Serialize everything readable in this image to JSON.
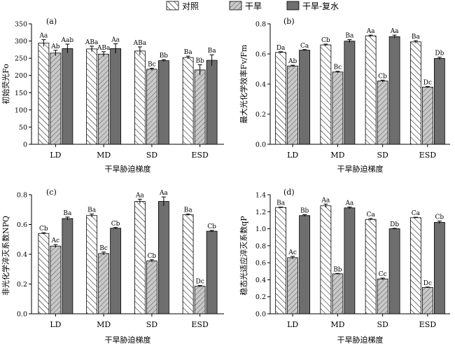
{
  "legend": [
    {
      "name": "对照",
      "fill": "hatch-fwd"
    },
    {
      "name": "干旱",
      "fill": "hatch-back"
    },
    {
      "name": "干旱-复水",
      "fill": "solid"
    }
  ],
  "colors": {
    "solid_bar": "#6e6e6e",
    "hatch_back_bg": "#c8c8c8",
    "axis": "#000000"
  },
  "chart_data": [
    {
      "type": "bar",
      "panel": "(a)",
      "ylabel": "初始荧光Fo",
      "xlabel": "干旱胁迫梯度",
      "categories": [
        "LD",
        "MD",
        "SD",
        "ESD"
      ],
      "ylim": [
        0,
        350
      ],
      "yticks": [
        0,
        50,
        100,
        150,
        200,
        250,
        300,
        350
      ],
      "ytick_labels": [
        "0",
        "50",
        "100",
        "150",
        "200",
        "250",
        "300",
        "350"
      ],
      "series": [
        {
          "name": "对照",
          "values": [
            294,
            277,
            271,
            252
          ],
          "errors": [
            10,
            8,
            12,
            4
          ],
          "labels": [
            "Aa",
            "ABa",
            "ABa",
            "Ba"
          ]
        },
        {
          "name": "干旱",
          "values": [
            265,
            262,
            218,
            216
          ],
          "errors": [
            8,
            7,
            3,
            15
          ],
          "labels": [
            "Ab",
            "ABa",
            "Bc",
            "Bb"
          ]
        },
        {
          "name": "干旱-复水",
          "values": [
            278,
            278,
            243,
            244
          ],
          "errors": [
            13,
            14,
            3,
            16
          ],
          "labels": [
            "Aab",
            "Aa",
            "Bb",
            "Ba"
          ]
        }
      ]
    },
    {
      "type": "bar",
      "panel": "(b)",
      "ylabel": "最大光化学效率Fv/Fm",
      "xlabel": "干旱胁迫梯度",
      "categories": [
        "LD",
        "MD",
        "SD",
        "ESD"
      ],
      "ylim": [
        0,
        0.8
      ],
      "yticks": [
        0,
        0.2,
        0.4,
        0.6,
        0.8
      ],
      "ytick_labels": [
        "0.0",
        "0.2",
        "0.4",
        "0.6",
        "0.8"
      ],
      "series": [
        {
          "name": "对照",
          "values": [
            0.61,
            0.66,
            0.72,
            0.68
          ],
          "errors": [
            0.005,
            0.005,
            0.005,
            0.008
          ],
          "labels": [
            "Da",
            "Cb",
            "Aa",
            "Ba"
          ]
        },
        {
          "name": "干旱",
          "values": [
            0.52,
            0.48,
            0.42,
            0.38
          ],
          "errors": [
            0.005,
            0.005,
            0.006,
            0.004
          ],
          "labels": [
            "Ab",
            "Bc",
            "Cb",
            "Dc"
          ]
        },
        {
          "name": "干旱-复水",
          "values": [
            0.625,
            0.685,
            0.715,
            0.57
          ],
          "errors": [
            0.004,
            0.01,
            0.01,
            0.008
          ],
          "labels": [
            "Ca",
            "Ba",
            "Aa",
            "Db"
          ]
        }
      ]
    },
    {
      "type": "bar",
      "panel": "(c)",
      "ylabel": "非光化学淬灭系数NPQ",
      "xlabel": "干旱胁迫梯度",
      "categories": [
        "LD",
        "MD",
        "SD",
        "ESD"
      ],
      "ylim": [
        0,
        0.8
      ],
      "yticks": [
        0,
        0.2,
        0.4,
        0.6,
        0.8
      ],
      "ytick_labels": [
        "0.0",
        "0.2",
        "0.4",
        "0.6",
        "0.8"
      ],
      "series": [
        {
          "name": "对照",
          "values": [
            0.54,
            0.66,
            0.755,
            0.665
          ],
          "errors": [
            0.005,
            0.01,
            0.015,
            0.005
          ],
          "labels": [
            "Cb",
            "Ba",
            "Aa",
            "Ba"
          ]
        },
        {
          "name": "干旱",
          "values": [
            0.455,
            0.405,
            0.355,
            0.185
          ],
          "errors": [
            0.01,
            0.01,
            0.008,
            0.005
          ],
          "labels": [
            "Ac",
            "Bc",
            "Cb",
            "Dc"
          ]
        },
        {
          "name": "干旱-复水",
          "values": [
            0.64,
            0.575,
            0.755,
            0.555
          ],
          "errors": [
            0.01,
            0.005,
            0.03,
            0.005
          ],
          "labels": [
            "Ba",
            "Cb",
            "Aa",
            "Cb"
          ]
        }
      ]
    },
    {
      "type": "bar",
      "panel": "(d)",
      "ylabel": "稳态光适应淬灭系数qP",
      "xlabel": "干旱胁迫梯度",
      "categories": [
        "LD",
        "MD",
        "SD",
        "ESD"
      ],
      "ylim": [
        0,
        1.4
      ],
      "yticks": [
        0,
        0.2,
        0.4,
        0.6,
        0.8,
        1.0,
        1.2,
        1.4
      ],
      "ytick_labels": [
        "0.0",
        "0.2",
        "0.4",
        "0.6",
        "0.8",
        "1.0",
        "1.2",
        "1.4"
      ],
      "series": [
        {
          "name": "对照",
          "values": [
            1.25,
            1.27,
            1.11,
            1.13
          ],
          "errors": [
            0.005,
            0.02,
            0.01,
            0.005
          ],
          "labels": [
            "Ba",
            "Aa",
            "Ca",
            "Ca"
          ]
        },
        {
          "name": "干旱",
          "values": [
            0.66,
            0.47,
            0.41,
            0.31
          ],
          "errors": [
            0.015,
            0.005,
            0.01,
            0.005
          ],
          "labels": [
            "Ac",
            "Bb",
            "Cc",
            "Dc"
          ]
        },
        {
          "name": "干旱-复水",
          "values": [
            1.155,
            1.245,
            1.0,
            1.075
          ],
          "errors": [
            0.01,
            0.01,
            0.005,
            0.015
          ],
          "labels": [
            "Bb",
            "Aa",
            "Db",
            "Cb"
          ]
        }
      ]
    }
  ]
}
